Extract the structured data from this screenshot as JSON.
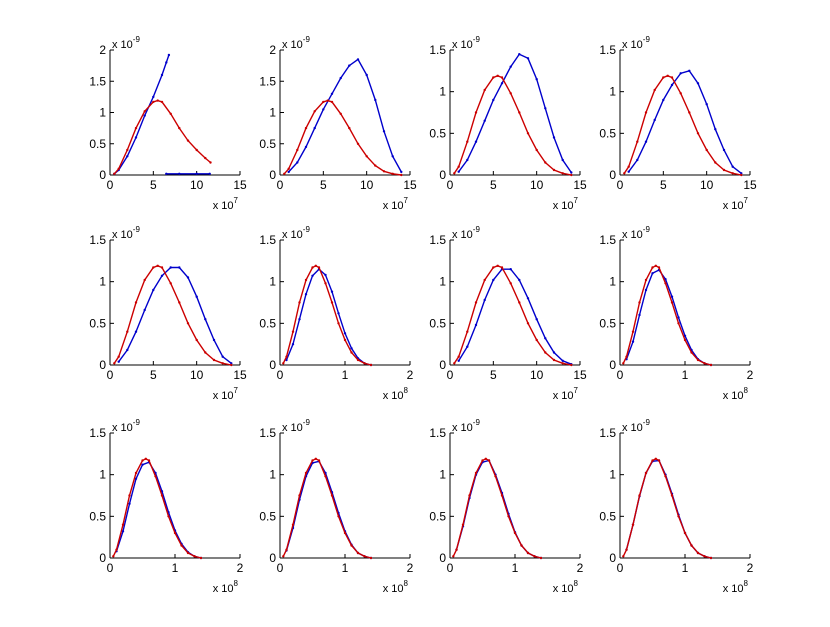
{
  "figure": {
    "background": "#ffffff",
    "axes_color": "#000000"
  },
  "chart_data": [
    {
      "type": "scatter",
      "xmult": "x 10",
      "xexp": "7",
      "ymult": "x 10",
      "yexp": "-9",
      "xlim": [
        0,
        15
      ],
      "ylim": [
        0,
        2
      ],
      "xticks": [
        "0",
        "5",
        "10",
        "15"
      ],
      "yticks": [
        "0",
        "0.5",
        "1",
        "1.5",
        "2"
      ],
      "reference": {
        "color": "#cc0000",
        "x": [
          0.5,
          1,
          2,
          3,
          4,
          5,
          5.5,
          6,
          7,
          8,
          9,
          10,
          11,
          11.6
        ],
        "y": [
          0.02,
          0.1,
          0.4,
          0.75,
          1.02,
          1.17,
          1.19,
          1.17,
          0.98,
          0.75,
          0.55,
          0.4,
          0.27,
          0.2
        ]
      },
      "sample": {
        "color": "#0000cc",
        "x": [
          0.5,
          1,
          2,
          3,
          4,
          5,
          6,
          6.5,
          6.8
        ],
        "y": [
          0.02,
          0.08,
          0.3,
          0.6,
          0.95,
          1.25,
          1.6,
          1.8,
          1.92
        ]
      },
      "extra": {
        "color": "#0000cc",
        "x": [
          6.5,
          8,
          10,
          11.5
        ],
        "y": [
          0.02,
          0.02,
          0.02,
          0.02
        ]
      }
    },
    {
      "type": "scatter",
      "xmult": "x 10",
      "xexp": "7",
      "ymult": "x 10",
      "yexp": "-9",
      "xlim": [
        0,
        15
      ],
      "ylim": [
        0,
        2
      ],
      "xticks": [
        "0",
        "5",
        "10",
        "15"
      ],
      "yticks": [
        "0",
        "0.5",
        "1",
        "1.5",
        "2"
      ],
      "reference": {
        "color": "#cc0000",
        "x": [
          0.5,
          1,
          2,
          3,
          4,
          5,
          5.5,
          6,
          7,
          8,
          9,
          10,
          11,
          12,
          13,
          14
        ],
        "y": [
          0.02,
          0.1,
          0.4,
          0.75,
          1.02,
          1.17,
          1.19,
          1.17,
          0.98,
          0.75,
          0.5,
          0.3,
          0.15,
          0.06,
          0.02,
          0.0
        ]
      },
      "sample": {
        "color": "#0000cc",
        "x": [
          1,
          2,
          3,
          4,
          5,
          6,
          7,
          8,
          9,
          10,
          11,
          12,
          13,
          14
        ],
        "y": [
          0.05,
          0.2,
          0.45,
          0.75,
          1.05,
          1.3,
          1.55,
          1.75,
          1.85,
          1.6,
          1.2,
          0.7,
          0.3,
          0.05
        ]
      }
    },
    {
      "type": "scatter",
      "xmult": "x 10",
      "xexp": "7",
      "ymult": "x 10",
      "yexp": "-9",
      "xlim": [
        0,
        15
      ],
      "ylim": [
        0,
        1.5
      ],
      "xticks": [
        "0",
        "5",
        "10",
        "15"
      ],
      "yticks": [
        "0",
        "0.5",
        "1",
        "1.5"
      ],
      "reference": {
        "color": "#cc0000",
        "x": [
          0.5,
          1,
          2,
          3,
          4,
          5,
          5.5,
          6,
          7,
          8,
          9,
          10,
          11,
          12,
          13,
          14
        ],
        "y": [
          0.02,
          0.1,
          0.4,
          0.75,
          1.02,
          1.17,
          1.19,
          1.17,
          0.98,
          0.75,
          0.5,
          0.3,
          0.15,
          0.06,
          0.02,
          0.0
        ]
      },
      "sample": {
        "color": "#0000cc",
        "x": [
          1,
          2,
          3,
          4,
          5,
          6,
          7,
          8,
          9,
          10,
          11,
          12,
          13,
          14
        ],
        "y": [
          0.04,
          0.18,
          0.4,
          0.65,
          0.9,
          1.1,
          1.3,
          1.45,
          1.4,
          1.15,
          0.8,
          0.45,
          0.18,
          0.03
        ]
      }
    },
    {
      "type": "scatter",
      "xmult": "x 10",
      "xexp": "7",
      "ymult": "x 10",
      "yexp": "-9",
      "xlim": [
        0,
        15
      ],
      "ylim": [
        0,
        1.5
      ],
      "xticks": [
        "0",
        "5",
        "10",
        "15"
      ],
      "yticks": [
        "0",
        "0.5",
        "1",
        "1.5"
      ],
      "reference": {
        "color": "#cc0000",
        "x": [
          0.5,
          1,
          2,
          3,
          4,
          5,
          5.5,
          6,
          7,
          8,
          9,
          10,
          11,
          12,
          13,
          14
        ],
        "y": [
          0.02,
          0.1,
          0.4,
          0.75,
          1.02,
          1.17,
          1.19,
          1.17,
          0.98,
          0.75,
          0.5,
          0.3,
          0.15,
          0.06,
          0.02,
          0.0
        ]
      },
      "sample": {
        "color": "#0000cc",
        "x": [
          1,
          2,
          3,
          4,
          5,
          6,
          7,
          8,
          9,
          10,
          11,
          12,
          13,
          14
        ],
        "y": [
          0.04,
          0.18,
          0.4,
          0.66,
          0.9,
          1.08,
          1.22,
          1.25,
          1.1,
          0.85,
          0.55,
          0.3,
          0.1,
          0.02
        ]
      }
    },
    {
      "type": "scatter",
      "xmult": "x 10",
      "xexp": "7",
      "ymult": "x 10",
      "yexp": "-9",
      "xlim": [
        0,
        15
      ],
      "ylim": [
        0,
        1.5
      ],
      "xticks": [
        "0",
        "5",
        "10",
        "15"
      ],
      "yticks": [
        "0",
        "0.5",
        "1",
        "1.5"
      ],
      "reference": {
        "color": "#cc0000",
        "x": [
          0.5,
          1,
          2,
          3,
          4,
          5,
          5.5,
          6,
          7,
          8,
          9,
          10,
          11,
          12,
          13,
          14
        ],
        "y": [
          0.02,
          0.1,
          0.4,
          0.75,
          1.02,
          1.17,
          1.19,
          1.17,
          0.98,
          0.75,
          0.5,
          0.3,
          0.15,
          0.06,
          0.02,
          0.0
        ]
      },
      "sample": {
        "color": "#0000cc",
        "x": [
          1,
          2,
          3,
          4,
          5,
          6,
          7,
          8,
          9,
          10,
          11,
          12,
          13,
          14
        ],
        "y": [
          0.04,
          0.18,
          0.4,
          0.66,
          0.9,
          1.07,
          1.17,
          1.17,
          1.05,
          0.82,
          0.55,
          0.3,
          0.1,
          0.02
        ]
      }
    },
    {
      "type": "scatter",
      "xmult": "x 10",
      "xexp": "8",
      "ymult": "x 10",
      "yexp": "-9",
      "xlim": [
        0,
        2
      ],
      "ylim": [
        0,
        1.5
      ],
      "xticks": [
        "0",
        "1",
        "2"
      ],
      "yticks": [
        "0",
        "0.5",
        "1",
        "1.5"
      ],
      "reference": {
        "color": "#cc0000",
        "x": [
          0.05,
          0.1,
          0.2,
          0.3,
          0.4,
          0.5,
          0.55,
          0.6,
          0.7,
          0.8,
          0.9,
          1.0,
          1.1,
          1.2,
          1.3,
          1.4
        ],
        "y": [
          0.02,
          0.1,
          0.4,
          0.75,
          1.02,
          1.17,
          1.19,
          1.17,
          0.98,
          0.75,
          0.5,
          0.3,
          0.15,
          0.06,
          0.02,
          0.0
        ]
      },
      "sample": {
        "color": "#0000cc",
        "x": [
          0.1,
          0.2,
          0.3,
          0.4,
          0.5,
          0.6,
          0.7,
          0.8,
          0.9,
          1.0,
          1.1,
          1.2,
          1.3,
          1.4
        ],
        "y": [
          0.06,
          0.25,
          0.55,
          0.85,
          1.07,
          1.15,
          1.08,
          0.88,
          0.62,
          0.38,
          0.2,
          0.08,
          0.02,
          0.0
        ]
      }
    },
    {
      "type": "scatter",
      "xmult": "x 10",
      "xexp": "7",
      "ymult": "x 10",
      "yexp": "-9",
      "xlim": [
        0,
        15
      ],
      "ylim": [
        0,
        1.5
      ],
      "xticks": [
        "0",
        "5",
        "10",
        "15"
      ],
      "yticks": [
        "0",
        "0.5",
        "1",
        "1.5"
      ],
      "reference": {
        "color": "#cc0000",
        "x": [
          0.5,
          1,
          2,
          3,
          4,
          5,
          5.5,
          6,
          7,
          8,
          9,
          10,
          11,
          12,
          13,
          14
        ],
        "y": [
          0.02,
          0.1,
          0.4,
          0.75,
          1.02,
          1.17,
          1.19,
          1.17,
          0.98,
          0.75,
          0.5,
          0.3,
          0.15,
          0.06,
          0.02,
          0.0
        ]
      },
      "sample": {
        "color": "#0000cc",
        "x": [
          1,
          2,
          3,
          4,
          5,
          6,
          7,
          8,
          9,
          10,
          11,
          12,
          13,
          14
        ],
        "y": [
          0.05,
          0.22,
          0.48,
          0.78,
          1.02,
          1.15,
          1.15,
          1.02,
          0.8,
          0.55,
          0.32,
          0.15,
          0.05,
          0.01
        ]
      }
    },
    {
      "type": "scatter",
      "xmult": "x 10",
      "xexp": "8",
      "ymult": "x 10",
      "yexp": "-9",
      "xlim": [
        0,
        2
      ],
      "ylim": [
        0,
        1.5
      ],
      "xticks": [
        "0",
        "1",
        "2"
      ],
      "yticks": [
        "0",
        "0.5",
        "1",
        "1.5"
      ],
      "reference": {
        "color": "#cc0000",
        "x": [
          0.05,
          0.1,
          0.2,
          0.3,
          0.4,
          0.5,
          0.55,
          0.6,
          0.7,
          0.8,
          0.9,
          1.0,
          1.1,
          1.2,
          1.3,
          1.4
        ],
        "y": [
          0.02,
          0.1,
          0.4,
          0.75,
          1.02,
          1.17,
          1.19,
          1.17,
          0.98,
          0.75,
          0.5,
          0.3,
          0.15,
          0.06,
          0.02,
          0.0
        ]
      },
      "sample": {
        "color": "#0000cc",
        "x": [
          0.1,
          0.2,
          0.3,
          0.4,
          0.5,
          0.6,
          0.7,
          0.8,
          0.9,
          1.0,
          1.1,
          1.2,
          1.3,
          1.4
        ],
        "y": [
          0.07,
          0.28,
          0.6,
          0.9,
          1.1,
          1.14,
          1.03,
          0.82,
          0.57,
          0.35,
          0.18,
          0.07,
          0.02,
          0.0
        ]
      }
    },
    {
      "type": "scatter",
      "xmult": "x 10",
      "xexp": "8",
      "ymult": "x 10",
      "yexp": "-9",
      "xlim": [
        0,
        2
      ],
      "ylim": [
        0,
        1.5
      ],
      "xticks": [
        "0",
        "1",
        "2"
      ],
      "yticks": [
        "0",
        "0.5",
        "1",
        "1.5"
      ],
      "reference": {
        "color": "#cc0000",
        "x": [
          0.05,
          0.1,
          0.2,
          0.3,
          0.4,
          0.5,
          0.55,
          0.6,
          0.7,
          0.8,
          0.9,
          1.0,
          1.1,
          1.2,
          1.3,
          1.4
        ],
        "y": [
          0.02,
          0.1,
          0.4,
          0.75,
          1.02,
          1.17,
          1.19,
          1.17,
          0.98,
          0.75,
          0.5,
          0.3,
          0.15,
          0.06,
          0.02,
          0.0
        ]
      },
      "sample": {
        "color": "#0000cc",
        "x": [
          0.1,
          0.2,
          0.3,
          0.4,
          0.5,
          0.6,
          0.7,
          0.8,
          0.9,
          1.0,
          1.1,
          1.2,
          1.3,
          1.4
        ],
        "y": [
          0.08,
          0.32,
          0.65,
          0.95,
          1.12,
          1.15,
          1.02,
          0.8,
          0.55,
          0.33,
          0.17,
          0.07,
          0.02,
          0.0
        ]
      }
    },
    {
      "type": "scatter",
      "xmult": "x 10",
      "xexp": "8",
      "ymult": "x 10",
      "yexp": "-9",
      "xlim": [
        0,
        2
      ],
      "ylim": [
        0,
        1.5
      ],
      "xticks": [
        "0",
        "1",
        "2"
      ],
      "yticks": [
        "0",
        "0.5",
        "1",
        "1.5"
      ],
      "reference": {
        "color": "#cc0000",
        "x": [
          0.05,
          0.1,
          0.2,
          0.3,
          0.4,
          0.5,
          0.55,
          0.6,
          0.7,
          0.8,
          0.9,
          1.0,
          1.1,
          1.2,
          1.3,
          1.4
        ],
        "y": [
          0.02,
          0.1,
          0.4,
          0.75,
          1.02,
          1.17,
          1.19,
          1.17,
          0.98,
          0.75,
          0.5,
          0.3,
          0.15,
          0.06,
          0.02,
          0.0
        ]
      },
      "sample": {
        "color": "#0000cc",
        "x": [
          0.1,
          0.2,
          0.3,
          0.4,
          0.5,
          0.6,
          0.7,
          0.8,
          0.9,
          1.0,
          1.1,
          1.2,
          1.3,
          1.4
        ],
        "y": [
          0.09,
          0.36,
          0.7,
          0.98,
          1.14,
          1.16,
          1.02,
          0.79,
          0.54,
          0.32,
          0.16,
          0.06,
          0.02,
          0.0
        ]
      }
    },
    {
      "type": "scatter",
      "xmult": "x 10",
      "xexp": "8",
      "ymult": "x 10",
      "yexp": "-9",
      "xlim": [
        0,
        2
      ],
      "ylim": [
        0,
        1.5
      ],
      "xticks": [
        "0",
        "1",
        "2"
      ],
      "yticks": [
        "0",
        "0.5",
        "1",
        "1.5"
      ],
      "reference": {
        "color": "#cc0000",
        "x": [
          0.05,
          0.1,
          0.2,
          0.3,
          0.4,
          0.5,
          0.55,
          0.6,
          0.7,
          0.8,
          0.9,
          1.0,
          1.1,
          1.2,
          1.3,
          1.4
        ],
        "y": [
          0.02,
          0.1,
          0.4,
          0.75,
          1.02,
          1.17,
          1.19,
          1.17,
          0.98,
          0.75,
          0.5,
          0.3,
          0.15,
          0.06,
          0.02,
          0.0
        ]
      },
      "sample": {
        "color": "#0000cc",
        "x": [
          0.1,
          0.2,
          0.3,
          0.4,
          0.5,
          0.6,
          0.7,
          0.8,
          0.9,
          1.0,
          1.1,
          1.2,
          1.3,
          1.4
        ],
        "y": [
          0.1,
          0.38,
          0.72,
          1.0,
          1.15,
          1.17,
          1.0,
          0.78,
          0.53,
          0.31,
          0.15,
          0.06,
          0.02,
          0.0
        ]
      }
    },
    {
      "type": "scatter",
      "xmult": "x 10",
      "xexp": "8",
      "ymult": "x 10",
      "yexp": "-9",
      "xlim": [
        0,
        2
      ],
      "ylim": [
        0,
        1.5
      ],
      "xticks": [
        "0",
        "1",
        "2"
      ],
      "yticks": [
        "0",
        "0.5",
        "1",
        "1.5"
      ],
      "reference": {
        "color": "#cc0000",
        "x": [
          0.05,
          0.1,
          0.2,
          0.3,
          0.4,
          0.5,
          0.55,
          0.6,
          0.7,
          0.8,
          0.9,
          1.0,
          1.1,
          1.2,
          1.3,
          1.4
        ],
        "y": [
          0.02,
          0.1,
          0.4,
          0.75,
          1.02,
          1.17,
          1.19,
          1.17,
          0.98,
          0.75,
          0.5,
          0.3,
          0.15,
          0.06,
          0.02,
          0.0
        ]
      },
      "sample": {
        "color": "#0000cc",
        "x": [
          0.1,
          0.2,
          0.3,
          0.4,
          0.5,
          0.6,
          0.7,
          0.8,
          0.9,
          1.0,
          1.1,
          1.2,
          1.3,
          1.4
        ],
        "y": [
          0.1,
          0.4,
          0.74,
          1.02,
          1.16,
          1.17,
          1.0,
          0.77,
          0.52,
          0.3,
          0.15,
          0.06,
          0.02,
          0.0
        ]
      }
    }
  ]
}
